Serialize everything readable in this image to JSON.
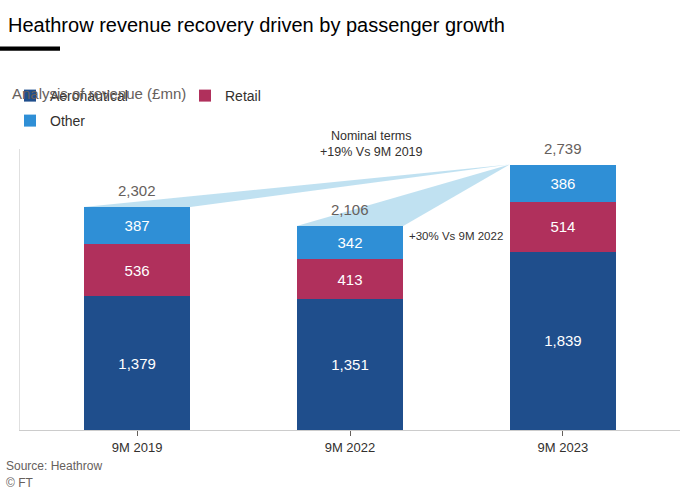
{
  "chart_data": {
    "type": "bar",
    "title": "Heathrow revenue recovery driven by passenger growth",
    "subtitle": "Analysis of revenue (£mn)",
    "source": "Source: Heathrow",
    "credit": "© FT",
    "categories": [
      "9M 2019",
      "9M 2022",
      "9M 2023"
    ],
    "series": [
      {
        "name": "Aeronautical",
        "color": "#1f4e8c",
        "values": [
          1379,
          1351,
          1839
        ],
        "value_labels": [
          "1,379",
          "1,351",
          "1,839"
        ]
      },
      {
        "name": "Retail",
        "color": "#b0305c",
        "values": [
          536,
          413,
          514
        ],
        "value_labels": [
          "536",
          "413",
          "514"
        ]
      },
      {
        "name": "Other",
        "color": "#2f8fd6",
        "values": [
          387,
          342,
          386
        ],
        "value_labels": [
          "387",
          "342",
          "386"
        ]
      }
    ],
    "totals": {
      "values": [
        2302,
        2106,
        2739
      ],
      "value_labels": [
        "2,302",
        "2,106",
        "2,739"
      ]
    },
    "annotations": [
      {
        "text": "Nominal terms\n+19% Vs 9M 2019",
        "from": "9M 2019",
        "to": "9M 2023"
      },
      {
        "text": "+30% Vs 9M 2022",
        "from": "9M 2022",
        "to": "9M 2023"
      }
    ],
    "stacked": true,
    "data_labels": true,
    "tick_labels": "x",
    "grid": false,
    "legend": "top-left",
    "ylim": [
      0,
      2900
    ]
  }
}
